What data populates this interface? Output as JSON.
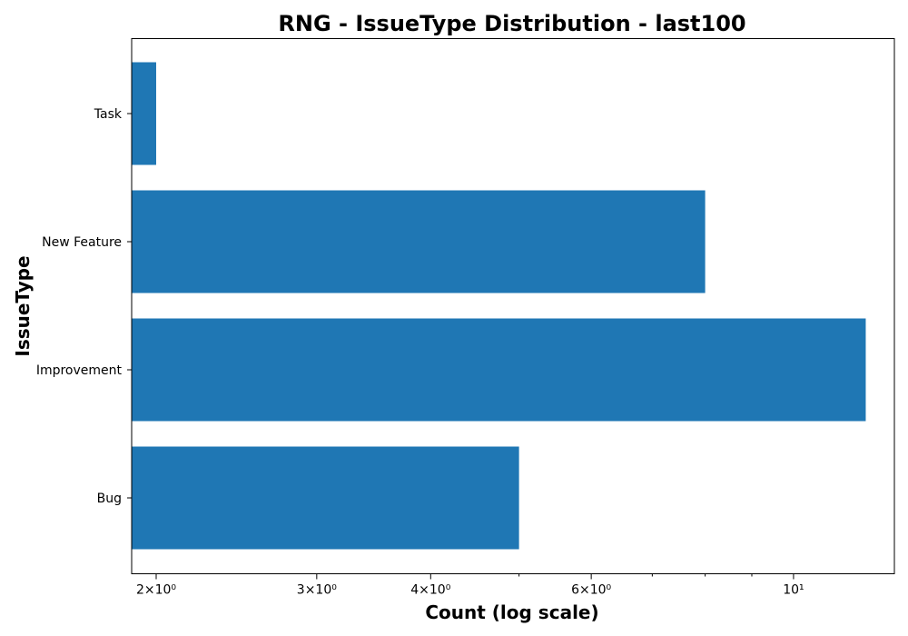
{
  "chart_data": {
    "type": "bar",
    "orientation": "horizontal",
    "title": "RNG - IssueType Distribution - last100",
    "xlabel": "Count (log scale)",
    "ylabel": "IssueType",
    "x_scale": "log",
    "xlim": [
      1.88,
      12.9
    ],
    "categories": [
      "Bug",
      "Improvement",
      "New Feature",
      "Task"
    ],
    "values": [
      5,
      12,
      8,
      2
    ],
    "bar_color": "#1f77b4",
    "x_major_ticks": [
      {
        "value": 2,
        "label": "2×10⁰"
      },
      {
        "value": 3,
        "label": "3×10⁰"
      },
      {
        "value": 4,
        "label": "4×10⁰"
      },
      {
        "value": 6,
        "label": "6×10⁰"
      },
      {
        "value": 10,
        "label": "10¹"
      }
    ],
    "x_minor_ticks": [
      5,
      7,
      8,
      9
    ],
    "grid": false,
    "legend": "none"
  }
}
